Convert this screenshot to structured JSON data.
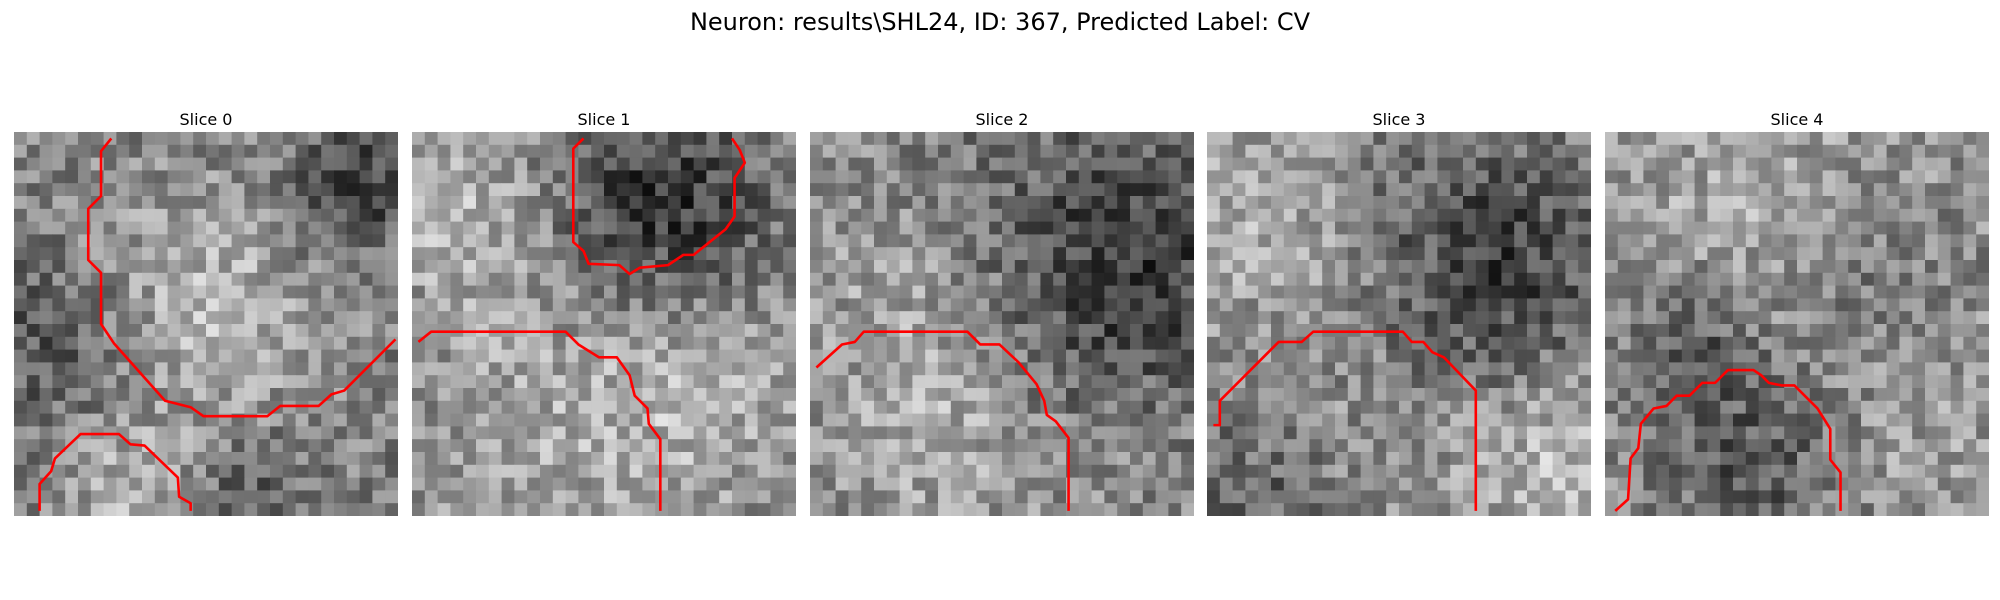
{
  "figure": {
    "title": "Neuron: results\\SHL24, ID: 367, Predicted Label: CV"
  },
  "slices": [
    {
      "title": "Slice 0"
    },
    {
      "title": "Slice 1"
    },
    {
      "title": "Slice 2"
    },
    {
      "title": "Slice 3"
    },
    {
      "title": "Slice 4"
    }
  ],
  "contour_color": "#ff0000"
}
